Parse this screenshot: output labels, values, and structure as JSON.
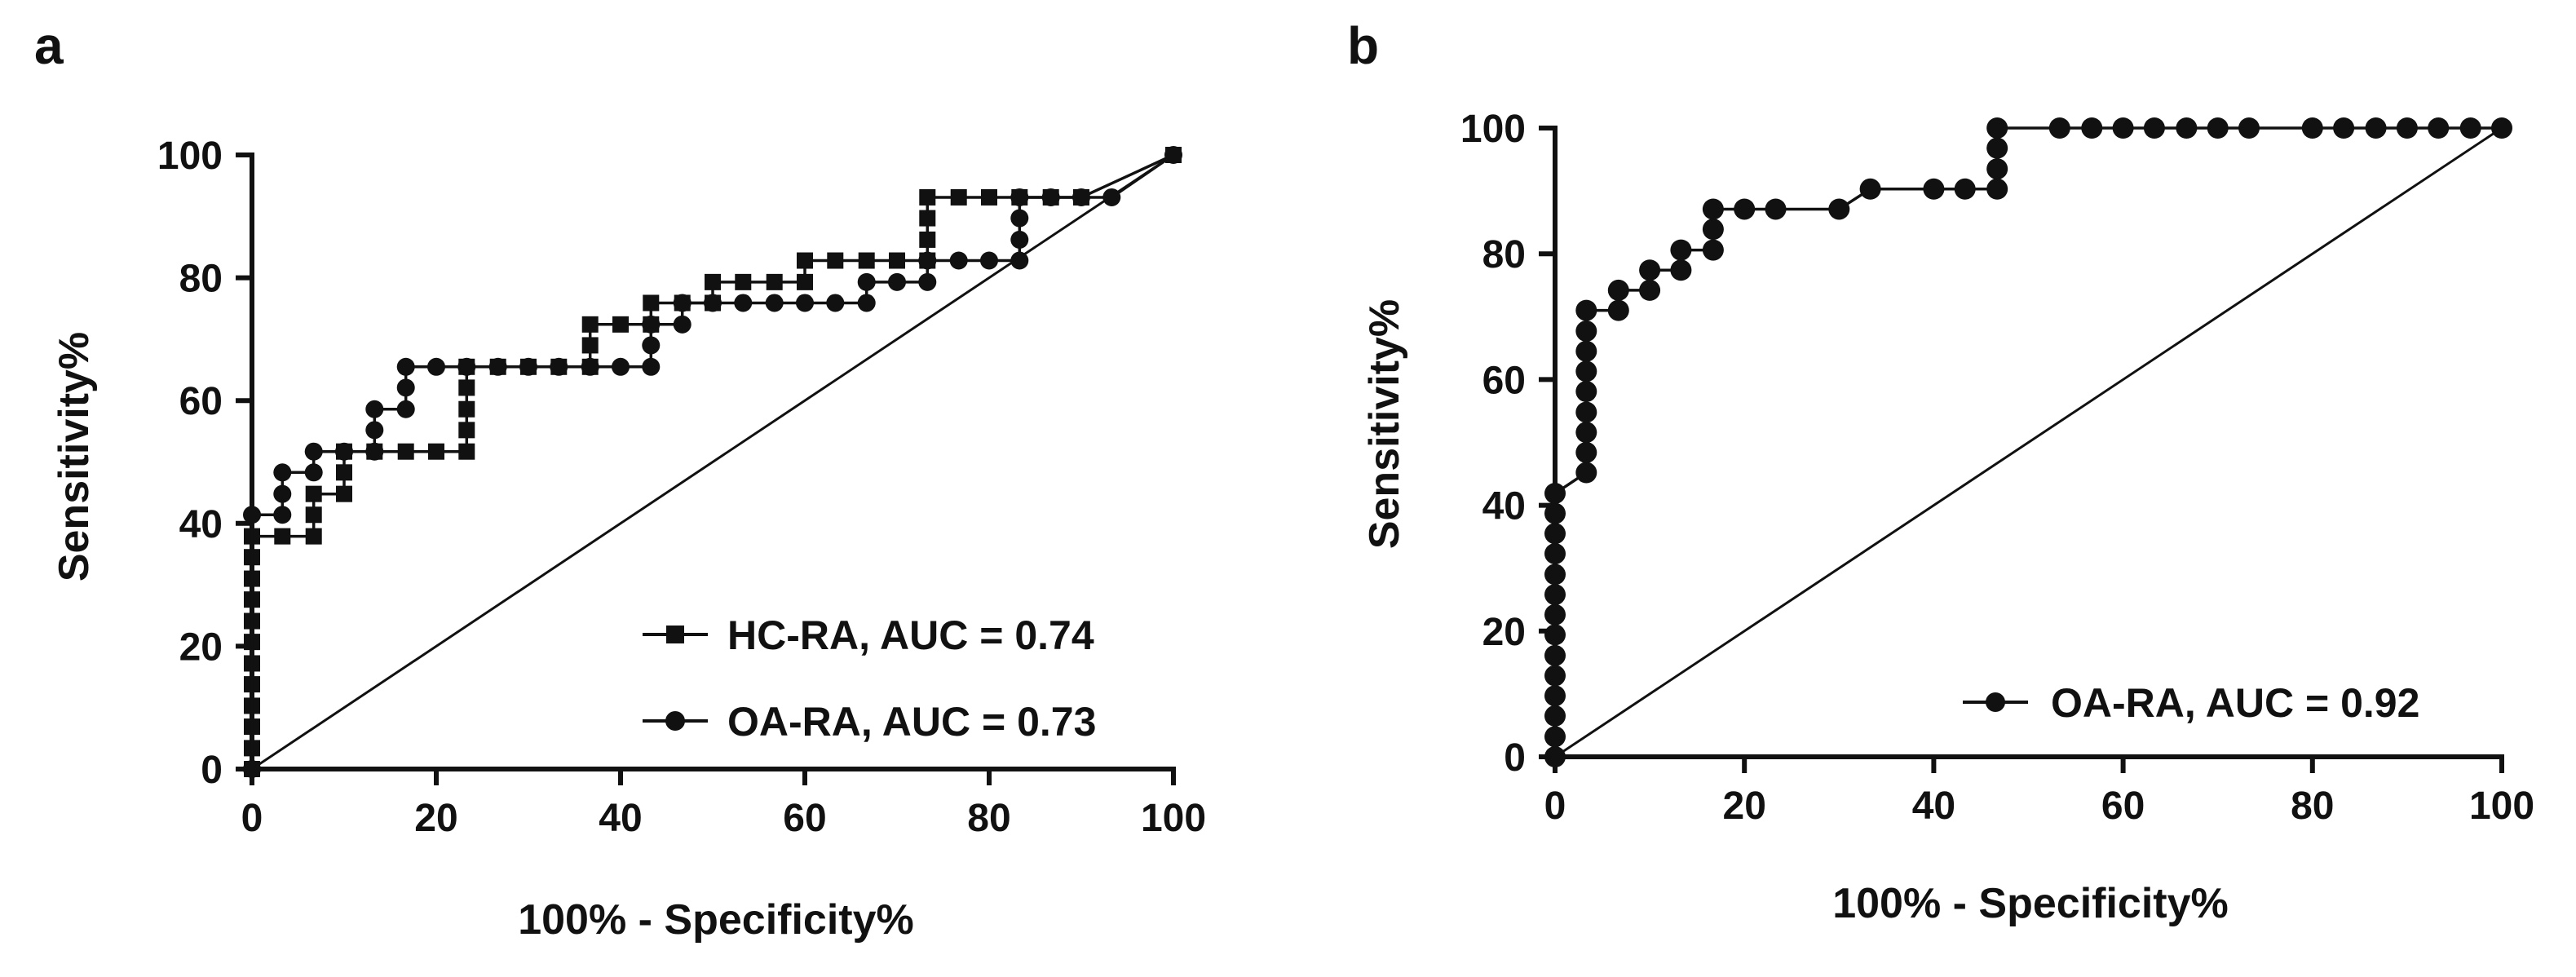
{
  "chart_data": [
    {
      "panel_label": "a",
      "type": "line",
      "xlabel": "100% - Specificity%",
      "ylabel": "Sensitivity%",
      "xlim": [
        0,
        100
      ],
      "ylim": [
        0,
        100
      ],
      "xticks": [
        0,
        20,
        40,
        60,
        80,
        100
      ],
      "yticks": [
        0,
        20,
        40,
        60,
        80,
        100
      ],
      "reference_line": {
        "from": [
          0,
          0
        ],
        "to": [
          100,
          100
        ]
      },
      "legend_position": "bottom-right",
      "series": [
        {
          "name": "HC-RA, AUC = 0.74",
          "marker": "square",
          "points": [
            [
              0,
              0
            ],
            [
              0,
              3.4
            ],
            [
              0,
              6.9
            ],
            [
              0,
              10.3
            ],
            [
              0,
              13.8
            ],
            [
              0,
              17.2
            ],
            [
              0,
              20.7
            ],
            [
              0,
              24.1
            ],
            [
              0,
              27.6
            ],
            [
              0,
              31.0
            ],
            [
              0,
              34.5
            ],
            [
              0,
              37.9
            ],
            [
              3.3,
              37.9
            ],
            [
              6.7,
              37.9
            ],
            [
              6.7,
              41.4
            ],
            [
              6.7,
              44.8
            ],
            [
              10,
              44.8
            ],
            [
              10,
              48.3
            ],
            [
              10,
              51.7
            ],
            [
              13.3,
              51.7
            ],
            [
              16.7,
              51.7
            ],
            [
              20,
              51.7
            ],
            [
              23.3,
              51.7
            ],
            [
              23.3,
              55.2
            ],
            [
              23.3,
              58.6
            ],
            [
              23.3,
              62.1
            ],
            [
              23.3,
              65.5
            ],
            [
              26.7,
              65.5
            ],
            [
              30,
              65.5
            ],
            [
              33.3,
              65.5
            ],
            [
              36.7,
              65.5
            ],
            [
              36.7,
              69.0
            ],
            [
              36.7,
              72.4
            ],
            [
              40,
              72.4
            ],
            [
              43.3,
              72.4
            ],
            [
              43.3,
              75.9
            ],
            [
              46.7,
              75.9
            ],
            [
              50,
              75.9
            ],
            [
              50,
              79.3
            ],
            [
              53.3,
              79.3
            ],
            [
              56.7,
              79.3
            ],
            [
              60,
              79.3
            ],
            [
              60,
              82.8
            ],
            [
              63.3,
              82.8
            ],
            [
              66.7,
              82.8
            ],
            [
              70,
              82.8
            ],
            [
              73.3,
              82.8
            ],
            [
              73.3,
              86.2
            ],
            [
              73.3,
              89.7
            ],
            [
              73.3,
              93.1
            ],
            [
              76.7,
              93.1
            ],
            [
              80,
              93.1
            ],
            [
              83.3,
              93.1
            ],
            [
              86.7,
              93.1
            ],
            [
              90,
              93.1
            ],
            [
              100,
              100
            ]
          ]
        },
        {
          "name": "OA-RA, AUC = 0.73",
          "marker": "circle",
          "points": [
            [
              0,
              0
            ],
            [
              0,
              41.4
            ],
            [
              3.3,
              41.4
            ],
            [
              3.3,
              44.8
            ],
            [
              3.3,
              48.3
            ],
            [
              6.7,
              48.3
            ],
            [
              6.7,
              51.7
            ],
            [
              10,
              51.7
            ],
            [
              13.3,
              51.7
            ],
            [
              13.3,
              55.2
            ],
            [
              13.3,
              58.6
            ],
            [
              16.7,
              58.6
            ],
            [
              16.7,
              62.1
            ],
            [
              16.7,
              65.5
            ],
            [
              20,
              65.5
            ],
            [
              23.3,
              65.5
            ],
            [
              26.7,
              65.5
            ],
            [
              30,
              65.5
            ],
            [
              33.3,
              65.5
            ],
            [
              36.7,
              65.5
            ],
            [
              40,
              65.5
            ],
            [
              43.3,
              65.5
            ],
            [
              43.3,
              69.0
            ],
            [
              43.3,
              72.4
            ],
            [
              46.7,
              72.4
            ],
            [
              46.7,
              75.9
            ],
            [
              50,
              75.9
            ],
            [
              53.3,
              75.9
            ],
            [
              56.7,
              75.9
            ],
            [
              60,
              75.9
            ],
            [
              63.3,
              75.9
            ],
            [
              66.7,
              75.9
            ],
            [
              66.7,
              79.3
            ],
            [
              70,
              79.3
            ],
            [
              73.3,
              79.3
            ],
            [
              73.3,
              82.8
            ],
            [
              76.7,
              82.8
            ],
            [
              80,
              82.8
            ],
            [
              83.3,
              82.8
            ],
            [
              83.3,
              86.2
            ],
            [
              83.3,
              89.7
            ],
            [
              83.3,
              93.1
            ],
            [
              86.7,
              93.1
            ],
            [
              90,
              93.1
            ],
            [
              93.3,
              93.1
            ],
            [
              100,
              100
            ]
          ]
        }
      ]
    },
    {
      "panel_label": "b",
      "type": "line",
      "xlabel": "100% - Specificity%",
      "ylabel": "Sensitivity%",
      "xlim": [
        0,
        100
      ],
      "ylim": [
        0,
        100
      ],
      "xticks": [
        0,
        20,
        40,
        60,
        80,
        100
      ],
      "yticks": [
        0,
        20,
        40,
        60,
        80,
        100
      ],
      "reference_line": {
        "from": [
          0,
          0
        ],
        "to": [
          100,
          100
        ]
      },
      "legend_position": "bottom-right",
      "series": [
        {
          "name": "OA-RA, AUC = 0.92",
          "marker": "circle",
          "points": [
            [
              0,
              0
            ],
            [
              0,
              3.2
            ],
            [
              0,
              6.5
            ],
            [
              0,
              9.7
            ],
            [
              0,
              12.9
            ],
            [
              0,
              16.1
            ],
            [
              0,
              19.4
            ],
            [
              0,
              22.6
            ],
            [
              0,
              25.8
            ],
            [
              0,
              29.0
            ],
            [
              0,
              32.3
            ],
            [
              0,
              35.5
            ],
            [
              0,
              38.7
            ],
            [
              0,
              41.9
            ],
            [
              3.3,
              45.2
            ],
            [
              3.3,
              48.4
            ],
            [
              3.3,
              51.6
            ],
            [
              3.3,
              54.8
            ],
            [
              3.3,
              58.1
            ],
            [
              3.3,
              61.3
            ],
            [
              3.3,
              64.5
            ],
            [
              3.3,
              67.7
            ],
            [
              3.3,
              71.0
            ],
            [
              6.7,
              71.0
            ],
            [
              6.7,
              74.2
            ],
            [
              10,
              74.2
            ],
            [
              10,
              77.4
            ],
            [
              13.3,
              77.4
            ],
            [
              13.3,
              80.6
            ],
            [
              16.7,
              80.6
            ],
            [
              16.7,
              83.9
            ],
            [
              16.7,
              87.1
            ],
            [
              20,
              87.1
            ],
            [
              23.3,
              87.1
            ],
            [
              30,
              87.1
            ],
            [
              33.3,
              90.3
            ],
            [
              40,
              90.3
            ],
            [
              43.3,
              90.3
            ],
            [
              46.7,
              90.3
            ],
            [
              46.7,
              93.5
            ],
            [
              46.7,
              96.8
            ],
            [
              46.7,
              100
            ],
            [
              53.3,
              100
            ],
            [
              56.7,
              100
            ],
            [
              60,
              100
            ],
            [
              63.3,
              100
            ],
            [
              66.7,
              100
            ],
            [
              70,
              100
            ],
            [
              73.3,
              100
            ],
            [
              80,
              100
            ],
            [
              83.3,
              100
            ],
            [
              86.7,
              100
            ],
            [
              90,
              100
            ],
            [
              93.3,
              100
            ],
            [
              96.7,
              100
            ],
            [
              100,
              100
            ]
          ]
        }
      ]
    }
  ]
}
